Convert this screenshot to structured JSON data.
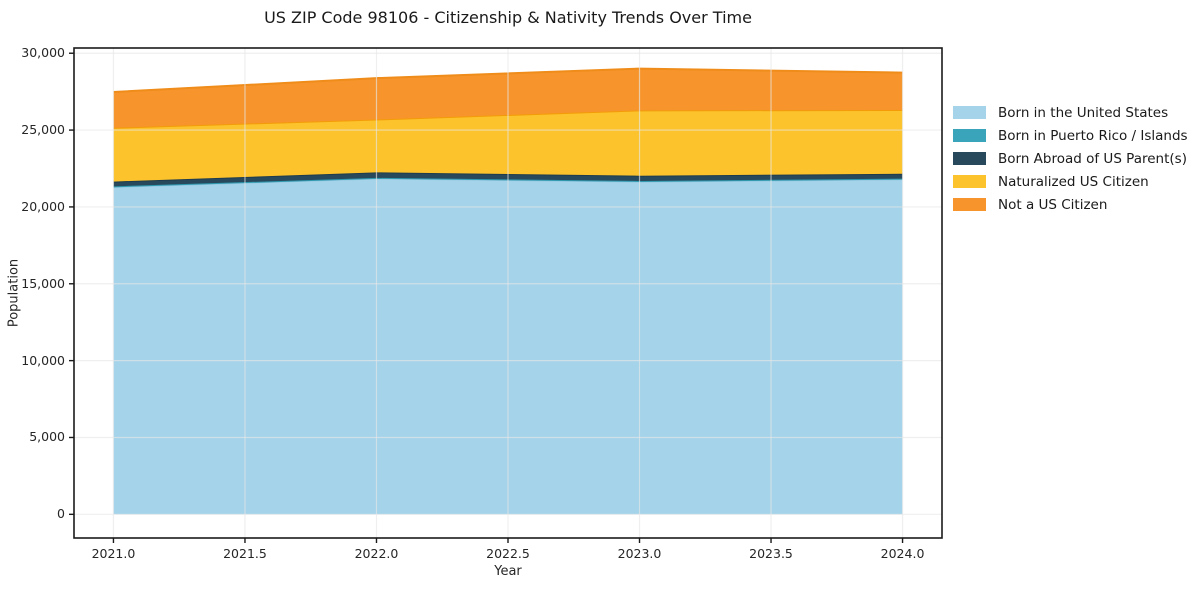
{
  "title": "US ZIP Code 98106 - Citizenship & Nativity Trends Over Time",
  "chart_data": {
    "type": "area",
    "stacked": true,
    "title": "US ZIP Code 98106 - Citizenship & Nativity Trends Over Time",
    "xlabel": "Year",
    "ylabel": "Population",
    "x": [
      2021,
      2022,
      2023,
      2024
    ],
    "series": [
      {
        "name": "Born in the United States",
        "color": "#a4d3ea",
        "edge": "#93c6e0",
        "values": [
          21300,
          21850,
          21650,
          21800
        ]
      },
      {
        "name": "Born in Puerto Rico / Islands",
        "color": "#3aa5ba",
        "edge": "#2f99ae",
        "values": [
          40,
          40,
          40,
          40
        ]
      },
      {
        "name": "Born Abroad of US Parent(s)",
        "color": "#28495c",
        "edge": "#1f3c4d",
        "values": [
          310,
          360,
          340,
          320
        ]
      },
      {
        "name": "Naturalized US Citizen",
        "color": "#fcc32d",
        "edge": "#f39c08",
        "values": [
          3500,
          3440,
          4250,
          4150
        ]
      },
      {
        "name": "Not a US Citizen",
        "color": "#f7952c",
        "edge": "#ef8c1a",
        "values": [
          2330,
          2690,
          2720,
          2430
        ]
      }
    ],
    "xlim": [
      2020.85,
      2024.15
    ],
    "ylim": [
      -1540,
      30340
    ],
    "xticks": [
      "2021.0",
      "2021.5",
      "2022.0",
      "2022.5",
      "2023.0",
      "2023.5",
      "2024.0"
    ],
    "xtick_values": [
      2021,
      2021.5,
      2022,
      2022.5,
      2023,
      2023.5,
      2024
    ],
    "yticks": [
      "0",
      "5,000",
      "10,000",
      "15,000",
      "20,000",
      "25,000",
      "30,000"
    ],
    "ytick_values": [
      0,
      5000,
      10000,
      15000,
      20000,
      25000,
      30000
    ],
    "grid": true,
    "grid_color": "#ebebeb",
    "frame_color": "#1a1a1a",
    "legend_position": "right-outside"
  }
}
